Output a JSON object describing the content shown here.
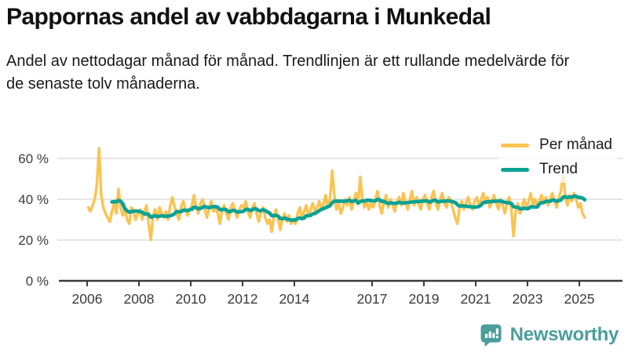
{
  "header": {
    "title": "Pappornas andel av vabbdagarna i Munkedal",
    "subtitle": "Andel av nettodagar månad för månad. Trendlinjen är ett rullande medelvärde för de senaste tolv månaderna."
  },
  "chart_data": {
    "type": "line",
    "title": "Pappornas andel av vabbdagarna i Munkedal",
    "unit": "%",
    "grid": true,
    "legend_position": "top-right",
    "x_axis": {
      "ticks": [
        2006,
        2008,
        2010,
        2012,
        2014,
        2017,
        2019,
        2021,
        2023,
        2025
      ],
      "tick_labels": [
        "2006",
        "2008",
        "2010",
        "2012",
        "2014",
        "2017",
        "2019",
        "2021",
        "2023",
        "2025"
      ]
    },
    "y_axis": {
      "ticks": [
        0,
        20,
        40,
        60
      ],
      "tick_labels": [
        "0 %",
        "20 %",
        "40 %",
        "60 %"
      ],
      "ylim": [
        0,
        70
      ]
    },
    "series": [
      {
        "name": "Per månad",
        "color": "#FBC34F",
        "frequency": "monthly",
        "start": "2006-01",
        "end": "2025-03",
        "values": [
          36,
          34,
          37,
          40,
          47,
          65,
          42,
          36,
          33,
          31,
          29,
          34,
          38,
          33,
          45,
          36,
          32,
          35,
          30,
          28,
          36,
          34,
          30,
          33,
          35,
          30,
          34,
          37,
          28,
          20,
          32,
          35,
          30,
          36,
          33,
          31,
          34,
          30,
          37,
          41,
          36,
          33,
          30,
          36,
          39,
          35,
          32,
          35,
          37,
          42,
          36,
          33,
          38,
          40,
          35,
          31,
          36,
          39,
          34,
          36,
          33,
          28,
          35,
          37,
          33,
          30,
          36,
          38,
          34,
          31,
          35,
          37,
          36,
          39,
          34,
          31,
          36,
          38,
          33,
          29,
          34,
          36,
          31,
          28,
          30,
          24,
          32,
          35,
          30,
          25,
          31,
          33,
          29,
          32,
          28,
          30,
          28,
          33,
          36,
          31,
          34,
          37,
          32,
          35,
          38,
          34,
          36,
          39,
          35,
          38,
          42,
          36,
          40,
          54,
          42,
          35,
          38,
          33,
          36,
          40,
          37,
          41,
          35,
          39,
          43,
          38,
          51,
          40,
          36,
          39,
          35,
          38,
          36,
          40,
          44,
          37,
          33,
          39,
          42,
          36,
          40,
          37,
          34,
          39,
          41,
          37,
          43,
          38,
          35,
          40,
          44,
          37,
          41,
          38,
          35,
          40,
          42,
          38,
          35,
          41,
          44,
          38,
          35,
          40,
          43,
          38,
          36,
          41,
          39,
          35,
          31,
          28,
          36,
          39,
          35,
          38,
          41,
          37,
          35,
          39,
          41,
          37,
          40,
          43,
          38,
          41,
          36,
          39,
          42,
          38,
          35,
          40,
          37,
          33,
          38,
          41,
          35,
          22,
          34,
          38,
          33,
          37,
          40,
          36,
          39,
          43,
          37,
          40,
          36,
          39,
          42,
          38,
          41,
          37,
          40,
          43,
          39,
          36,
          41,
          44,
          53,
          41,
          37,
          42,
          39,
          43,
          40,
          36,
          38,
          33,
          31
        ]
      },
      {
        "name": "Trend",
        "color": "#0BA295",
        "derived_from": "Per månad",
        "method": "rolling_mean",
        "window_months": 12
      }
    ]
  },
  "footer": {
    "brand": "Newsworthy",
    "brand_color": "#4A9E9B"
  }
}
